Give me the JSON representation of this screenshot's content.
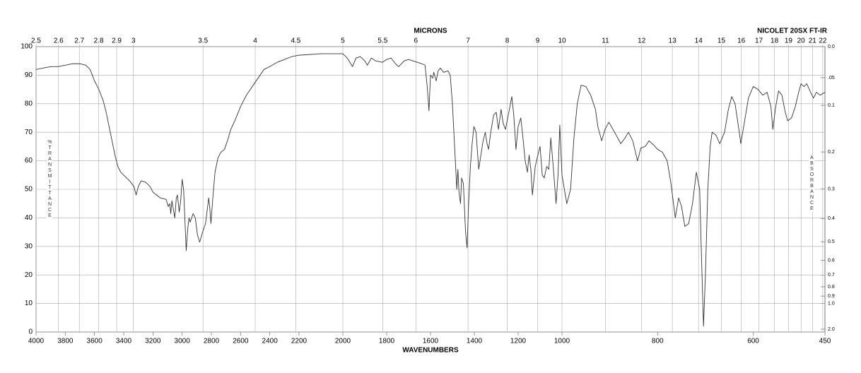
{
  "chart_data": {
    "type": "line",
    "title": "NICOLET 20SX FT-IR",
    "x_label": "WAVENUMBERS",
    "x2_label": "MICRONS",
    "y_label": "%TRANSMITTANCE",
    "y2_label": "ABSORBANCE",
    "color": "#333333",
    "grid": true,
    "xlim": [
      4000,
      450
    ],
    "xticks": [
      4000,
      3800,
      3600,
      3400,
      3200,
      3000,
      2800,
      2600,
      2400,
      2200,
      2000,
      1800,
      1600,
      1400,
      1200,
      1000,
      800,
      600,
      450
    ],
    "x2ticks": [
      2.5,
      2.6,
      2.7,
      2.8,
      2.9,
      3,
      3.5,
      4,
      4.5,
      5,
      5.5,
      6,
      7,
      8,
      9,
      10,
      11,
      12,
      13,
      14,
      15,
      16,
      17,
      18,
      19,
      20,
      21,
      22
    ],
    "ylim": [
      0,
      100
    ],
    "yticks": [
      0,
      10,
      20,
      30,
      40,
      50,
      60,
      70,
      80,
      90,
      100
    ],
    "y2ticks": [
      {
        "value": 0,
        "label": "0.0"
      },
      {
        "value": 0.05,
        "label": ".05"
      },
      0.1,
      0.2,
      0.3,
      0.4,
      0.5,
      0.6,
      0.7,
      0.8,
      0.9,
      {
        "value": 1,
        "label": "1.0"
      },
      {
        "value": 2,
        "label": "2.0"
      }
    ],
    "x": [
      4000,
      3950,
      3900,
      3850,
      3800,
      3750,
      3700,
      3660,
      3630,
      3600,
      3570,
      3540,
      3520,
      3500,
      3480,
      3460,
      3440,
      3420,
      3400,
      3360,
      3330,
      3315,
      3300,
      3280,
      3250,
      3220,
      3200,
      3150,
      3110,
      3095,
      3085,
      3078,
      3070,
      3060,
      3050,
      3040,
      3032,
      3020,
      3010,
      3000,
      2990,
      2980,
      2972,
      2962,
      2953,
      2945,
      2925,
      2910,
      2895,
      2880,
      2860,
      2840,
      2818,
      2810,
      2803,
      2790,
      2775,
      2755,
      2735,
      2710,
      2690,
      2667,
      2640,
      2600,
      2560,
      2520,
      2480,
      2440,
      2400,
      2350,
      2300,
      2250,
      2200,
      2100,
      2000,
      1980,
      1956,
      1940,
      1920,
      1900,
      1888,
      1870,
      1850,
      1820,
      1800,
      1780,
      1760,
      1745,
      1720,
      1700,
      1680,
      1660,
      1640,
      1625,
      1615,
      1607,
      1600,
      1590,
      1585,
      1574,
      1565,
      1555,
      1540,
      1520,
      1510,
      1500,
      1490,
      1480,
      1475,
      1470,
      1463,
      1458,
      1450,
      1440,
      1433,
      1426,
      1418,
      1410,
      1402,
      1392,
      1380,
      1370,
      1360,
      1350,
      1342,
      1335,
      1325,
      1312,
      1300,
      1290,
      1278,
      1268,
      1258,
      1245,
      1229,
      1220,
      1210,
      1200,
      1188,
      1178,
      1168,
      1158,
      1150,
      1142,
      1135,
      1122,
      1110,
      1100,
      1090,
      1081,
      1070,
      1060,
      1051,
      1040,
      1027,
      1018,
      1010,
      1000,
      990,
      982,
      975,
      968,
      960,
      950,
      940,
      930,
      925,
      917,
      910,
      902,
      890,
      877,
      868,
      861,
      852,
      842,
      835,
      826,
      818,
      808,
      800,
      790,
      780,
      772,
      763,
      756,
      750,
      743,
      735,
      727,
      719,
      712,
      708,
      704,
      700,
      695,
      690,
      686,
      678,
      670,
      660,
      652,
      645,
      638,
      630,
      626,
      618,
      610,
      600,
      590,
      580,
      571,
      563,
      559,
      553,
      547,
      540,
      533,
      528,
      520,
      512,
      505,
      500,
      494,
      488,
      480,
      474,
      468,
      460,
      450
    ],
    "values": [
      92,
      92.5,
      93,
      93,
      93.5,
      94,
      94,
      93.5,
      92,
      88,
      85,
      81,
      77,
      72,
      67,
      62,
      58,
      56,
      55,
      53,
      51,
      48,
      51,
      53,
      52.5,
      51,
      49,
      47,
      46.5,
      44,
      45,
      41.5,
      46,
      43,
      40,
      47,
      48,
      42,
      46,
      53.5,
      50,
      38,
      28.5,
      36,
      40,
      38.5,
      41.5,
      40,
      34,
      31.5,
      35,
      38,
      47,
      43,
      38,
      47,
      56,
      61,
      63,
      64,
      67,
      71,
      74,
      79,
      83,
      86,
      89,
      92,
      93,
      94.5,
      95.5,
      96.5,
      97,
      97.5,
      97.5,
      96,
      93,
      96,
      96.5,
      95,
      93.5,
      96,
      95,
      94.5,
      95.5,
      96,
      94,
      93,
      95,
      95.5,
      95,
      94.5,
      94,
      93.5,
      86,
      77.5,
      90,
      89,
      91,
      88,
      91.5,
      92.5,
      91,
      91.5,
      90,
      80,
      65,
      50,
      57,
      49,
      45,
      54,
      52,
      35,
      29.5,
      45,
      58,
      66,
      72,
      70,
      57,
      62,
      67,
      70,
      66,
      64,
      70,
      76,
      77,
      71,
      78,
      73,
      71,
      76,
      82.5,
      76,
      64,
      72,
      75,
      68,
      60,
      56,
      62,
      57,
      48,
      58,
      62,
      65,
      55,
      54,
      58,
      57,
      68,
      58,
      45,
      55,
      72.5,
      55,
      45,
      50,
      68,
      80,
      86.5,
      86,
      83,
      78,
      72,
      67,
      71,
      73.5,
      70,
      66,
      68,
      70,
      67,
      60,
      64.5,
      65,
      67,
      65.5,
      64,
      63,
      60,
      52,
      40,
      47,
      44,
      37,
      38,
      45,
      56,
      50,
      25,
      2,
      20,
      50,
      65,
      70,
      69,
      66,
      70,
      78,
      82.5,
      80,
      71,
      66,
      74,
      82,
      86,
      85,
      83,
      84,
      79,
      71,
      79,
      84.5,
      83,
      77,
      74,
      75,
      79,
      84,
      87,
      86,
      87,
      84,
      82,
      84,
      83,
      84
    ]
  }
}
